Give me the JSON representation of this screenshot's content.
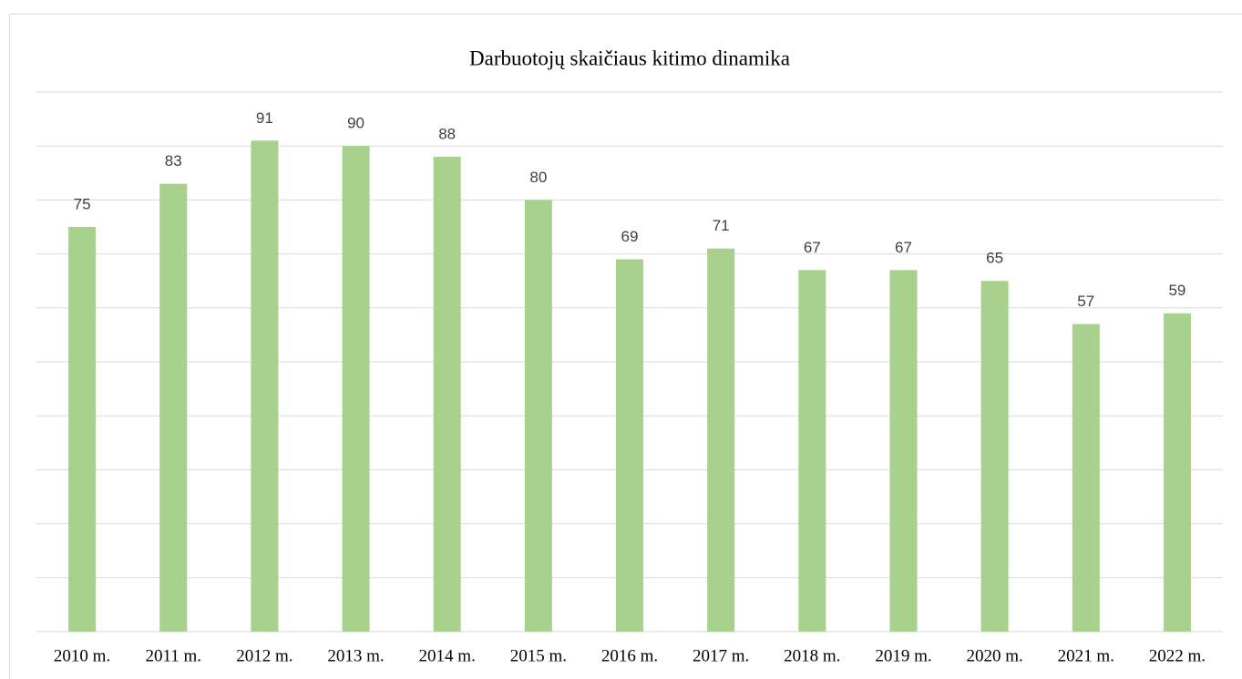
{
  "chart_data": {
    "type": "bar",
    "title": "Darbuotojų skaičiaus kitimo dinamika",
    "categories": [
      "2010 m.",
      "2011 m.",
      "2012 m.",
      "2013 m.",
      "2014 m.",
      "2015 m.",
      "2016 m.",
      "2017 m.",
      "2018 m.",
      "2019 m.",
      "2020 m.",
      "2021 m.",
      "2022 m."
    ],
    "values": [
      75,
      83,
      91,
      90,
      88,
      80,
      69,
      71,
      67,
      67,
      65,
      57,
      59
    ],
    "color": "#a9d18e",
    "ylim": [
      0,
      100
    ],
    "yticks": [
      0,
      10,
      20,
      30,
      40,
      50,
      60,
      70,
      80,
      90,
      100
    ],
    "grid": true
  }
}
